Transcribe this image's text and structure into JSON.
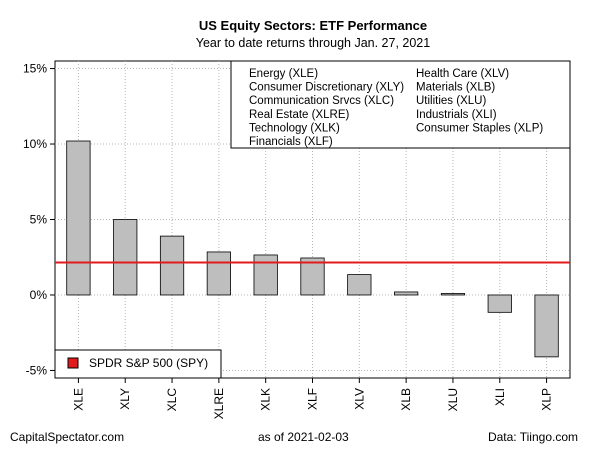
{
  "chart_data": {
    "type": "bar",
    "title": "US Equity Sectors: ETF Performance",
    "subtitle": "Year to date returns through Jan. 27, 2021",
    "categories": [
      "XLE",
      "XLY",
      "XLC",
      "XLRE",
      "XLK",
      "XLF",
      "XLV",
      "XLB",
      "XLU",
      "XLI",
      "XLP"
    ],
    "values": [
      10.2,
      5.0,
      3.9,
      2.85,
      2.65,
      2.45,
      1.35,
      0.2,
      0.1,
      -1.15,
      -4.1
    ],
    "ylim": [
      -5.5,
      15.5
    ],
    "yticks": [
      -5,
      0,
      5,
      10,
      15
    ],
    "ytick_labels": [
      "-5%",
      "0%",
      "5%",
      "10%",
      "15%"
    ],
    "grid": true,
    "bar_color": "#bebebe",
    "reference_line": {
      "label": "SPDR S&P 500 (SPY)",
      "value": 2.15,
      "color": "#e31a1c"
    },
    "legend_top": {
      "col1": [
        "Energy (XLE)",
        "Consumer Discretionary (XLY)",
        "Communication Srvcs (XLC)",
        "Real Estate (XLRE)",
        "Technology (XLK)",
        "Financials (XLF)"
      ],
      "col2": [
        "Health Care (XLV)",
        "Materials (XLB)",
        "Utilities (XLU)",
        "Industrials (XLI)",
        "Consumer Staples (XLP)"
      ]
    }
  },
  "footer": {
    "left": "CapitalSpectator.com",
    "middle": "as of   2021-02-03",
    "right": "Data: Tiingo.com"
  }
}
